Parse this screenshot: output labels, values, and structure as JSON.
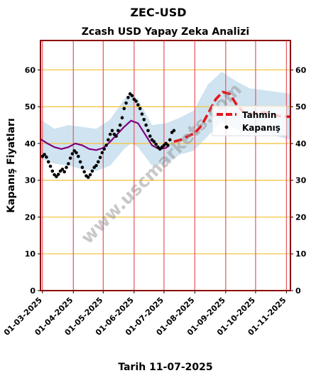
{
  "chart_data": {
    "type": "line",
    "suptitle": "ZEC-USD",
    "title": "Zcash USD Yapay Zeka Analizi",
    "xlabel": "Tarih 11-07-2025",
    "ylabel": "Kapanış Fiyatları",
    "ylim": [
      0,
      68
    ],
    "xlim": [
      "2025-02-27",
      "2025-11-05"
    ],
    "yticks": [
      0,
      10,
      20,
      30,
      40,
      50,
      60
    ],
    "xticks": [
      "01-03-2025",
      "01-04-2025",
      "01-05-2025",
      "01-06-2025",
      "01-07-2025",
      "01-08-2025",
      "01-09-2025",
      "01-10-2025",
      "01-11-2025"
    ],
    "grid": "horizontal gold lines, vertical red lines",
    "legend": {
      "position": "right",
      "entries": [
        "Tahmin",
        "Kapanış"
      ]
    },
    "watermark": "www.uscmarkets.com",
    "colors": {
      "close": "#000000",
      "trend": "#800080",
      "forecast": "#e8141a",
      "band": "#a8cce4",
      "frame": "#8b0000",
      "hgrid": "#f5c542",
      "vgrid": "#e8606a"
    },
    "series": [
      {
        "name": "Kapanış",
        "style": "scatter",
        "points": [
          [
            "2025-03-01",
            36.5
          ],
          [
            "2025-03-03",
            37.0
          ],
          [
            "2025-03-05",
            36.3
          ],
          [
            "2025-03-07",
            35.0
          ],
          [
            "2025-03-09",
            33.8
          ],
          [
            "2025-03-11",
            32.5
          ],
          [
            "2025-03-13",
            31.5
          ],
          [
            "2025-03-15",
            31.0
          ],
          [
            "2025-03-17",
            31.6
          ],
          [
            "2025-03-19",
            32.5
          ],
          [
            "2025-03-21",
            33.0
          ],
          [
            "2025-03-23",
            32.3
          ],
          [
            "2025-03-25",
            33.5
          ],
          [
            "2025-03-27",
            34.5
          ],
          [
            "2025-03-29",
            36.0
          ],
          [
            "2025-03-31",
            37.2
          ],
          [
            "2025-04-02",
            38.0
          ],
          [
            "2025-04-04",
            37.5
          ],
          [
            "2025-04-06",
            36.5
          ],
          [
            "2025-04-08",
            35.0
          ],
          [
            "2025-04-10",
            33.5
          ],
          [
            "2025-04-12",
            32.3
          ],
          [
            "2025-04-14",
            31.2
          ],
          [
            "2025-04-16",
            30.8
          ],
          [
            "2025-04-18",
            31.5
          ],
          [
            "2025-04-20",
            32.5
          ],
          [
            "2025-04-22",
            33.5
          ],
          [
            "2025-04-24",
            34.0
          ],
          [
            "2025-04-26",
            35.0
          ],
          [
            "2025-04-28",
            36.2
          ],
          [
            "2025-04-30",
            37.5
          ],
          [
            "2025-05-02",
            38.5
          ],
          [
            "2025-05-04",
            39.5
          ],
          [
            "2025-05-06",
            41.0
          ],
          [
            "2025-05-08",
            42.5
          ],
          [
            "2025-05-10",
            43.5
          ],
          [
            "2025-05-12",
            42.5
          ],
          [
            "2025-05-14",
            42.0
          ],
          [
            "2025-05-16",
            43.5
          ],
          [
            "2025-05-18",
            45.0
          ],
          [
            "2025-05-20",
            47.0
          ],
          [
            "2025-05-22",
            49.5
          ],
          [
            "2025-05-24",
            51.0
          ],
          [
            "2025-05-26",
            52.5
          ],
          [
            "2025-05-28",
            53.5
          ],
          [
            "2025-05-30",
            53.0
          ],
          [
            "2025-06-01",
            52.0
          ],
          [
            "2025-06-03",
            51.5
          ],
          [
            "2025-06-05",
            50.5
          ],
          [
            "2025-06-07",
            49.5
          ],
          [
            "2025-06-09",
            48.0
          ],
          [
            "2025-06-11",
            46.5
          ],
          [
            "2025-06-13",
            45.0
          ],
          [
            "2025-06-15",
            43.5
          ],
          [
            "2025-06-17",
            42.0
          ],
          [
            "2025-06-19",
            41.0
          ],
          [
            "2025-06-21",
            40.5
          ],
          [
            "2025-06-23",
            39.8
          ],
          [
            "2025-06-25",
            39.0
          ],
          [
            "2025-06-27",
            38.5
          ],
          [
            "2025-06-29",
            39.0
          ],
          [
            "2025-07-01",
            39.5
          ],
          [
            "2025-07-03",
            40.0
          ],
          [
            "2025-07-05",
            39.5
          ],
          [
            "2025-07-07",
            41.0
          ],
          [
            "2025-07-09",
            43.0
          ],
          [
            "2025-07-11",
            43.5
          ]
        ]
      },
      {
        "name": "",
        "style": "line",
        "points": [
          [
            "2025-02-27",
            41.2
          ],
          [
            "2025-03-06",
            40.0
          ],
          [
            "2025-03-13",
            39.0
          ],
          [
            "2025-03-20",
            38.5
          ],
          [
            "2025-03-27",
            39.0
          ],
          [
            "2025-04-03",
            40.0
          ],
          [
            "2025-04-10",
            39.5
          ],
          [
            "2025-04-17",
            38.5
          ],
          [
            "2025-04-24",
            38.2
          ],
          [
            "2025-05-01",
            38.8
          ],
          [
            "2025-05-08",
            40.5
          ],
          [
            "2025-05-15",
            42.5
          ],
          [
            "2025-05-22",
            44.5
          ],
          [
            "2025-05-29",
            46.2
          ],
          [
            "2025-06-05",
            45.5
          ],
          [
            "2025-06-12",
            42.5
          ],
          [
            "2025-06-19",
            39.5
          ],
          [
            "2025-06-26",
            38.5
          ],
          [
            "2025-07-03",
            38.8
          ],
          [
            "2025-07-06",
            39.5
          ]
        ]
      },
      {
        "name": "Tahmin",
        "style": "dashed-line",
        "points": [
          [
            "2025-07-11",
            40.5
          ],
          [
            "2025-07-18",
            41.0
          ],
          [
            "2025-07-25",
            42.0
          ],
          [
            "2025-08-01",
            42.8
          ],
          [
            "2025-08-08",
            45.0
          ],
          [
            "2025-08-15",
            48.5
          ],
          [
            "2025-08-22",
            52.0
          ],
          [
            "2025-08-29",
            54.0
          ],
          [
            "2025-09-05",
            53.5
          ],
          [
            "2025-09-12",
            50.5
          ],
          [
            "2025-09-19",
            48.5
          ],
          [
            "2025-09-26",
            48.0
          ],
          [
            "2025-10-03",
            48.3
          ],
          [
            "2025-10-10",
            48.5
          ],
          [
            "2025-10-17",
            48.0
          ],
          [
            "2025-10-24",
            47.5
          ],
          [
            "2025-10-31",
            47.3
          ],
          [
            "2025-11-05",
            47.3
          ]
        ]
      },
      {
        "name": "",
        "style": "band",
        "points": [
          [
            "2025-02-27",
            46.5,
            36.0
          ],
          [
            "2025-03-13",
            44.0,
            34.5
          ],
          [
            "2025-03-27",
            45.0,
            34.0
          ],
          [
            "2025-04-10",
            44.5,
            33.0
          ],
          [
            "2025-04-24",
            44.0,
            32.5
          ],
          [
            "2025-05-08",
            46.5,
            34.0
          ],
          [
            "2025-05-22",
            52.0,
            38.5
          ],
          [
            "2025-05-29",
            53.5,
            40.0
          ],
          [
            "2025-06-05",
            52.0,
            39.0
          ],
          [
            "2025-06-19",
            45.0,
            34.0
          ],
          [
            "2025-07-03",
            45.5,
            34.5
          ],
          [
            "2025-07-17",
            47.0,
            37.0
          ],
          [
            "2025-07-31",
            49.0,
            38.0
          ],
          [
            "2025-08-14",
            56.0,
            42.0
          ],
          [
            "2025-08-28",
            59.5,
            46.0
          ],
          [
            "2025-09-11",
            57.0,
            44.0
          ],
          [
            "2025-09-25",
            55.0,
            42.5
          ],
          [
            "2025-10-09",
            54.5,
            43.0
          ],
          [
            "2025-10-23",
            54.0,
            42.0
          ],
          [
            "2025-11-05",
            53.5,
            41.0
          ]
        ]
      }
    ]
  }
}
